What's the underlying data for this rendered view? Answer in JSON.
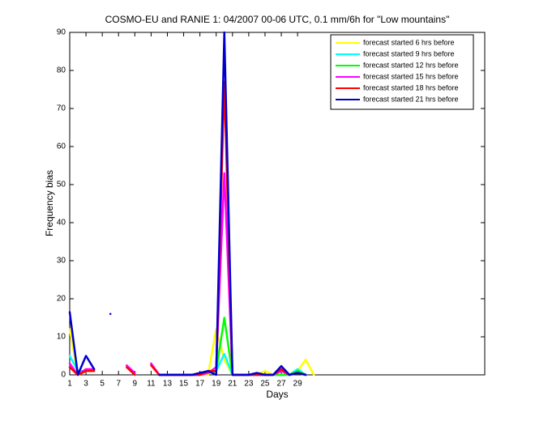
{
  "chart_data": {
    "type": "line",
    "title": "COSMO-EU and RANIE 1: 04/2007 00-06 UTC, 0.1 mm/6h for \"Low mountains\"",
    "xlabel": "Days",
    "ylabel": "Frequency bias",
    "x": [
      1,
      2,
      3,
      4,
      5,
      6,
      7,
      8,
      9,
      10,
      11,
      12,
      13,
      14,
      15,
      16,
      17,
      18,
      19,
      20,
      21,
      22,
      23,
      24,
      25,
      26,
      27,
      28,
      29,
      30,
      31
    ],
    "xlim": [
      1,
      52
    ],
    "ylim": [
      0,
      90
    ],
    "xticks": [
      1,
      3,
      5,
      7,
      9,
      11,
      13,
      15,
      17,
      19,
      21,
      23,
      25,
      27,
      29
    ],
    "yticks": [
      0,
      10,
      20,
      30,
      40,
      50,
      60,
      70,
      80,
      90
    ],
    "legend": "upper right",
    "series": [
      {
        "name": "forecast started 6 hrs before",
        "color": "#ffff00",
        "values": [
          12,
          0,
          1,
          1,
          null,
          null,
          null,
          null,
          null,
          null,
          null,
          0,
          0,
          0,
          0,
          0,
          0,
          0,
          12,
          4,
          0,
          0,
          0,
          0,
          1,
          0,
          0,
          0,
          1,
          4,
          0
        ]
      },
      {
        "name": "forecast started 9 hrs before",
        "color": "#00ffff",
        "values": [
          5,
          1,
          1,
          1,
          null,
          null,
          null,
          null,
          null,
          null,
          null,
          0,
          0,
          0,
          0,
          0,
          0,
          1,
          1,
          5.5,
          0,
          0,
          0,
          0,
          0,
          0,
          0,
          0,
          1.5,
          0,
          null
        ]
      },
      {
        "name": "forecast started 12 hrs before",
        "color": "#00ff00",
        "values": [
          2,
          0,
          1,
          1,
          null,
          null,
          null,
          null,
          0.5,
          null,
          null,
          0,
          0,
          0,
          0,
          0,
          0,
          0.5,
          1,
          15,
          0,
          0,
          0,
          0,
          0,
          0,
          0,
          0,
          1,
          0,
          null
        ]
      },
      {
        "name": "forecast started 15 hrs before",
        "color": "#ff00ff",
        "values": [
          3,
          0,
          1.5,
          1.5,
          null,
          null,
          null,
          2.5,
          0.5,
          null,
          3,
          0,
          0,
          0,
          0,
          0,
          0,
          0.5,
          2,
          53,
          0,
          0,
          0,
          0,
          0,
          0,
          1,
          0,
          0.5,
          0,
          null
        ]
      },
      {
        "name": "forecast started 18 hrs before",
        "color": "#ff0000",
        "values": [
          2,
          0,
          1,
          1,
          null,
          null,
          null,
          2,
          0,
          null,
          2.5,
          0,
          0,
          0,
          0,
          0,
          0,
          1,
          1,
          77,
          0,
          0,
          0,
          0,
          0,
          0,
          1.5,
          0,
          0.5,
          0,
          null
        ]
      },
      {
        "name": "forecast started 21 hrs before",
        "color": "#0000cc",
        "values": [
          16.5,
          0,
          5,
          1.5,
          null,
          16,
          null,
          null,
          null,
          null,
          null,
          0,
          0,
          0,
          0,
          0,
          0.5,
          1,
          0,
          90,
          0,
          0,
          0,
          0.5,
          0,
          0,
          2.3,
          0,
          0.5,
          0,
          null
        ]
      }
    ]
  }
}
